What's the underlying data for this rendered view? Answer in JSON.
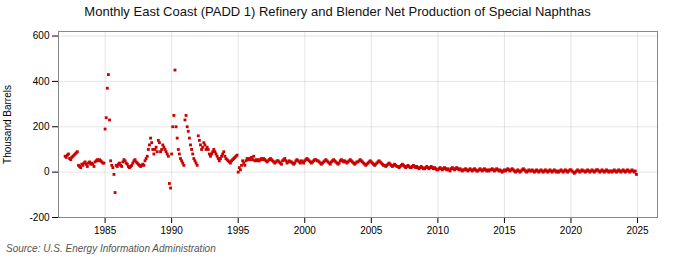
{
  "chart_data": {
    "type": "scatter",
    "title": "Monthly East Coast (PADD 1) Refinery and Blender Net Production of Special Naphthas",
    "ylabel": "Thousand Barrels",
    "source": "Source: U.S. Energy Information Administration",
    "color": "#cc0000",
    "marker": "square",
    "grid": true,
    "xlim": [
      1981.5,
      2026.5
    ],
    "ylim": [
      -200,
      620
    ],
    "yticks": [
      -200,
      0,
      200,
      400,
      600
    ],
    "xticks": [
      1985,
      1990,
      1995,
      2000,
      2005,
      2010,
      2015,
      2020,
      2025
    ],
    "x": [
      1982.0,
      1982.083,
      1982.167,
      1982.25,
      1982.333,
      1982.417,
      1982.5,
      1982.583,
      1982.667,
      1982.75,
      1982.833,
      1982.917,
      1983.0,
      1983.083,
      1983.167,
      1983.25,
      1983.333,
      1983.417,
      1983.5,
      1983.583,
      1983.667,
      1983.75,
      1983.833,
      1983.917,
      1984.0,
      1984.083,
      1984.167,
      1984.25,
      1984.333,
      1984.417,
      1984.5,
      1984.583,
      1984.667,
      1984.75,
      1984.833,
      1984.917,
      1985.0,
      1985.083,
      1985.167,
      1985.25,
      1985.333,
      1985.417,
      1985.5,
      1985.583,
      1985.667,
      1985.75,
      1985.833,
      1985.917,
      1986.0,
      1986.083,
      1986.167,
      1986.25,
      1986.333,
      1986.417,
      1986.5,
      1986.583,
      1986.667,
      1986.75,
      1986.833,
      1986.917,
      1987.0,
      1987.083,
      1987.167,
      1987.25,
      1987.333,
      1987.417,
      1987.5,
      1987.583,
      1987.667,
      1987.75,
      1987.833,
      1987.917,
      1988.0,
      1988.083,
      1988.167,
      1988.25,
      1988.333,
      1988.417,
      1988.5,
      1988.583,
      1988.667,
      1988.75,
      1988.833,
      1988.917,
      1989.0,
      1989.083,
      1989.167,
      1989.25,
      1989.333,
      1989.417,
      1989.5,
      1989.583,
      1989.667,
      1989.75,
      1989.833,
      1989.917,
      1990.0,
      1990.083,
      1990.167,
      1990.25,
      1990.333,
      1990.417,
      1990.5,
      1990.583,
      1990.667,
      1990.75,
      1990.833,
      1990.917,
      1991.0,
      1991.083,
      1991.167,
      1991.25,
      1991.333,
      1991.417,
      1991.5,
      1991.583,
      1991.667,
      1991.75,
      1991.833,
      1991.917,
      1992.0,
      1992.083,
      1992.167,
      1992.25,
      1992.333,
      1992.417,
      1992.5,
      1992.583,
      1992.667,
      1992.75,
      1992.833,
      1992.917,
      1993.0,
      1993.083,
      1993.167,
      1993.25,
      1993.333,
      1993.417,
      1993.5,
      1993.583,
      1993.667,
      1993.75,
      1993.833,
      1993.917,
      1994.0,
      1994.083,
      1994.167,
      1994.25,
      1994.333,
      1994.417,
      1994.5,
      1994.583,
      1994.667,
      1994.75,
      1994.833,
      1994.917,
      1995.0,
      1995.083,
      1995.167,
      1995.25,
      1995.333,
      1995.417,
      1995.5,
      1995.583,
      1995.667,
      1995.75,
      1995.833,
      1995.917,
      1996.0,
      1996.083,
      1996.167,
      1996.25,
      1996.333,
      1996.417,
      1996.5,
      1996.583,
      1996.667,
      1996.75,
      1996.833,
      1996.917,
      1997.0,
      1997.083,
      1997.167,
      1997.25,
      1997.333,
      1997.417,
      1997.5,
      1997.583,
      1997.667,
      1997.75,
      1997.833,
      1997.917,
      1998.0,
      1998.083,
      1998.167,
      1998.25,
      1998.333,
      1998.417,
      1998.5,
      1998.583,
      1998.667,
      1998.75,
      1998.833,
      1998.917,
      1999.0,
      1999.083,
      1999.167,
      1999.25,
      1999.333,
      1999.417,
      1999.5,
      1999.583,
      1999.667,
      1999.75,
      1999.833,
      1999.917,
      2000.0,
      2000.083,
      2000.167,
      2000.25,
      2000.333,
      2000.417,
      2000.5,
      2000.583,
      2000.667,
      2000.75,
      2000.833,
      2000.917,
      2001.0,
      2001.083,
      2001.167,
      2001.25,
      2001.333,
      2001.417,
      2001.5,
      2001.583,
      2001.667,
      2001.75,
      2001.833,
      2001.917,
      2002.0,
      2002.083,
      2002.167,
      2002.25,
      2002.333,
      2002.417,
      2002.5,
      2002.583,
      2002.667,
      2002.75,
      2002.833,
      2002.917,
      2003.0,
      2003.083,
      2003.167,
      2003.25,
      2003.333,
      2003.417,
      2003.5,
      2003.583,
      2003.667,
      2003.75,
      2003.833,
      2003.917,
      2004.0,
      2004.083,
      2004.167,
      2004.25,
      2004.333,
      2004.417,
      2004.5,
      2004.583,
      2004.667,
      2004.75,
      2004.833,
      2004.917,
      2005.0,
      2005.083,
      2005.167,
      2005.25,
      2005.333,
      2005.417,
      2005.5,
      2005.583,
      2005.667,
      2005.75,
      2005.833,
      2005.917,
      2006.0,
      2006.083,
      2006.167,
      2006.25,
      2006.333,
      2006.417,
      2006.5,
      2006.583,
      2006.667,
      2006.75,
      2006.833,
      2006.917,
      2007.0,
      2007.083,
      2007.167,
      2007.25,
      2007.333,
      2007.417,
      2007.5,
      2007.583,
      2007.667,
      2007.75,
      2007.833,
      2007.917,
      2008.0,
      2008.083,
      2008.167,
      2008.25,
      2008.333,
      2008.417,
      2008.5,
      2008.583,
      2008.667,
      2008.75,
      2008.833,
      2008.917,
      2009.0,
      2009.083,
      2009.167,
      2009.25,
      2009.333,
      2009.417,
      2009.5,
      2009.583,
      2009.667,
      2009.75,
      2009.833,
      2009.917,
      2010.0,
      2010.083,
      2010.167,
      2010.25,
      2010.333,
      2010.417,
      2010.5,
      2010.583,
      2010.667,
      2010.75,
      2010.833,
      2010.917,
      2011.0,
      2011.083,
      2011.167,
      2011.25,
      2011.333,
      2011.417,
      2011.5,
      2011.583,
      2011.667,
      2011.75,
      2011.833,
      2011.917,
      2012.0,
      2012.083,
      2012.167,
      2012.25,
      2012.333,
      2012.417,
      2012.5,
      2012.583,
      2012.667,
      2012.75,
      2012.833,
      2012.917,
      2013.0,
      2013.083,
      2013.167,
      2013.25,
      2013.333,
      2013.417,
      2013.5,
      2013.583,
      2013.667,
      2013.75,
      2013.833,
      2013.917,
      2014.0,
      2014.083,
      2014.167,
      2014.25,
      2014.333,
      2014.417,
      2014.5,
      2014.583,
      2014.667,
      2014.75,
      2014.833,
      2014.917,
      2015.0,
      2015.083,
      2015.167,
      2015.25,
      2015.333,
      2015.417,
      2015.5,
      2015.583,
      2015.667,
      2015.75,
      2015.833,
      2015.917,
      2016.0,
      2016.083,
      2016.167,
      2016.25,
      2016.333,
      2016.417,
      2016.5,
      2016.583,
      2016.667,
      2016.75,
      2016.833,
      2016.917,
      2017.0,
      2017.083,
      2017.167,
      2017.25,
      2017.333,
      2017.417,
      2017.5,
      2017.583,
      2017.667,
      2017.75,
      2017.833,
      2017.917,
      2018.0,
      2018.083,
      2018.167,
      2018.25,
      2018.333,
      2018.417,
      2018.5,
      2018.583,
      2018.667,
      2018.75,
      2018.833,
      2018.917,
      2019.0,
      2019.083,
      2019.167,
      2019.25,
      2019.333,
      2019.417,
      2019.5,
      2019.583,
      2019.667,
      2019.75,
      2019.833,
      2019.917,
      2020.0,
      2020.083,
      2020.167,
      2020.25,
      2020.333,
      2020.417,
      2020.5,
      2020.583,
      2020.667,
      2020.75,
      2020.833,
      2020.917,
      2021.0,
      2021.083,
      2021.167,
      2021.25,
      2021.333,
      2021.417,
      2021.5,
      2021.583,
      2021.667,
      2021.75,
      2021.833,
      2021.917,
      2022.0,
      2022.083,
      2022.167,
      2022.25,
      2022.333,
      2022.417,
      2022.5,
      2022.583,
      2022.667,
      2022.75,
      2022.833,
      2022.917,
      2023.0,
      2023.083,
      2023.167,
      2023.25,
      2023.333,
      2023.417,
      2023.5,
      2023.583,
      2023.667,
      2023.75,
      2023.833,
      2023.917,
      2024.0,
      2024.083,
      2024.167,
      2024.25,
      2024.333,
      2024.417,
      2024.5,
      2024.583,
      2024.667,
      2024.75,
      2024.833,
      2024.917
    ],
    "values": [
      70,
      65,
      75,
      80,
      60,
      55,
      65,
      70,
      75,
      80,
      85,
      90,
      30,
      25,
      20,
      35,
      30,
      40,
      45,
      35,
      25,
      40,
      45,
      35,
      40,
      35,
      25,
      45,
      50,
      55,
      50,
      55,
      50,
      45,
      40,
      40,
      190,
      240,
      370,
      430,
      230,
      50,
      30,
      20,
      -10,
      -90,
      30,
      25,
      35,
      40,
      30,
      25,
      45,
      55,
      50,
      40,
      35,
      25,
      20,
      25,
      30,
      40,
      50,
      55,
      45,
      40,
      35,
      30,
      25,
      30,
      35,
      30,
      50,
      60,
      70,
      100,
      120,
      150,
      130,
      100,
      80,
      100,
      110,
      90,
      140,
      130,
      90,
      100,
      120,
      110,
      100,
      90,
      80,
      70,
      -50,
      -70,
      80,
      200,
      250,
      450,
      200,
      150,
      100,
      80,
      60,
      50,
      40,
      30,
      230,
      250,
      200,
      180,
      150,
      120,
      100,
      80,
      60,
      50,
      40,
      30,
      160,
      140,
      120,
      100,
      110,
      130,
      120,
      100,
      110,
      100,
      80,
      70,
      80,
      90,
      100,
      90,
      80,
      70,
      60,
      50,
      60,
      70,
      80,
      90,
      70,
      60,
      55,
      50,
      45,
      40,
      50,
      55,
      60,
      65,
      70,
      75,
      0,
      20,
      10,
      30,
      50,
      40,
      30,
      50,
      60,
      55,
      60,
      55,
      65,
      55,
      70,
      50,
      55,
      50,
      55,
      50,
      55,
      60,
      55,
      60,
      55,
      50,
      45,
      50,
      55,
      60,
      55,
      50,
      45,
      40,
      45,
      50,
      50,
      45,
      40,
      35,
      50,
      55,
      60,
      50,
      40,
      45,
      50,
      45,
      45,
      40,
      35,
      40,
      50,
      55,
      50,
      45,
      40,
      50,
      45,
      40,
      50,
      55,
      60,
      55,
      50,
      45,
      40,
      45,
      50,
      55,
      55,
      50,
      50,
      45,
      40,
      35,
      40,
      45,
      50,
      55,
      50,
      45,
      40,
      35,
      45,
      50,
      55,
      50,
      45,
      40,
      35,
      40,
      50,
      55,
      50,
      45,
      50,
      45,
      40,
      45,
      50,
      55,
      50,
      45,
      40,
      35,
      40,
      45,
      45,
      50,
      55,
      50,
      45,
      40,
      35,
      30,
      35,
      40,
      45,
      50,
      45,
      40,
      35,
      30,
      35,
      40,
      45,
      50,
      45,
      40,
      35,
      30,
      30,
      25,
      30,
      35,
      40,
      35,
      30,
      25,
      30,
      35,
      30,
      25,
      25,
      20,
      25,
      30,
      35,
      30,
      25,
      20,
      25,
      30,
      25,
      20,
      20,
      25,
      30,
      25,
      20,
      25,
      20,
      15,
      20,
      25,
      20,
      15,
      15,
      20,
      25,
      20,
      15,
      20,
      25,
      20,
      15,
      20,
      15,
      10,
      10,
      15,
      20,
      15,
      10,
      15,
      20,
      15,
      10,
      15,
      10,
      5,
      15,
      20,
      15,
      10,
      15,
      20,
      15,
      10,
      15,
      10,
      5,
      10,
      10,
      15,
      10,
      5,
      10,
      15,
      10,
      5,
      10,
      15,
      10,
      5,
      5,
      10,
      15,
      10,
      5,
      10,
      15,
      10,
      5,
      10,
      5,
      10,
      10,
      15,
      10,
      5,
      10,
      15,
      10,
      5,
      10,
      5,
      0,
      5,
      10,
      5,
      10,
      15,
      10,
      5,
      10,
      15,
      10,
      5,
      0,
      5,
      10,
      5,
      0,
      5,
      10,
      15,
      10,
      5,
      0,
      5,
      10,
      5,
      5,
      10,
      5,
      0,
      5,
      10,
      5,
      0,
      5,
      10,
      5,
      0,
      5,
      10,
      5,
      0,
      5,
      10,
      5,
      0,
      5,
      10,
      5,
      0,
      5,
      0,
      5,
      10,
      5,
      0,
      5,
      10,
      5,
      0,
      5,
      10,
      10,
      5,
      0,
      -5,
      0,
      5,
      10,
      5,
      0,
      5,
      10,
      5,
      5,
      0,
      5,
      10,
      5,
      0,
      5,
      10,
      5,
      0,
      5,
      10,
      10,
      5,
      0,
      5,
      10,
      5,
      0,
      5,
      10,
      5,
      0,
      5,
      5,
      0,
      5,
      10,
      5,
      0,
      5,
      10,
      5,
      0,
      5,
      10,
      5,
      0,
      5,
      10,
      5,
      0,
      5,
      10,
      5,
      0,
      5,
      -10
    ]
  }
}
